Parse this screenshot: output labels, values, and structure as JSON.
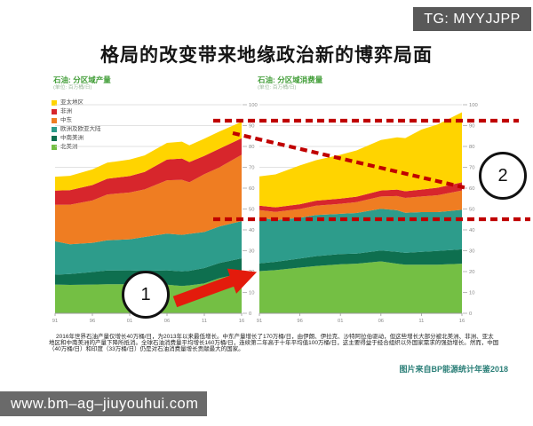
{
  "tg_badge": "TG: MYYJJPP",
  "title": "格局的改变带来地缘政治新的博弈局面",
  "watermark": "www.bm–ag–jiuyouhui.com",
  "legend": {
    "items": [
      {
        "label": "亚太地区",
        "color": "#FFD400"
      },
      {
        "label": "非洲",
        "color": "#D7262C"
      },
      {
        "label": "中东",
        "color": "#EF7D22"
      },
      {
        "label": "欧洲及欧亚大陆",
        "color": "#2D9C8B"
      },
      {
        "label": "中南美洲",
        "color": "#0E6F4F"
      },
      {
        "label": "北美洲",
        "color": "#74BF44"
      }
    ]
  },
  "chart_data": [
    {
      "type": "area",
      "title": "石油: 分区域产量",
      "unit_label": "(单位: 百万桶/日)",
      "x": [
        1991,
        1993,
        1996,
        1998,
        2001,
        2003,
        2006,
        2008,
        2009,
        2011,
        2013,
        2016
      ],
      "x_tick_labels": [
        "91",
        "96",
        "01",
        "06",
        "11",
        "16"
      ],
      "ylim": [
        0,
        100
      ],
      "y_ticks": [
        0,
        10,
        20,
        30,
        40,
        50,
        60,
        70,
        80,
        90,
        100
      ],
      "stack_order": "bottom-to-top",
      "legend_position": "left",
      "grid": true,
      "series": [
        {
          "name": "北美洲",
          "color": "#74BF44",
          "values": [
            13.8,
            13.6,
            13.8,
            13.9,
            13.9,
            14.0,
            13.7,
            13.1,
            13.4,
            14.3,
            16.8,
            19.3
          ]
        },
        {
          "name": "中南美洲",
          "color": "#0E6F4F",
          "values": [
            4.7,
            5.2,
            6.0,
            6.6,
            6.7,
            6.4,
            6.9,
            7.0,
            7.0,
            7.4,
            7.3,
            7.1
          ]
        },
        {
          "name": "欧洲及欧亚大陆",
          "color": "#2D9C8B",
          "values": [
            16.0,
            14.3,
            14.0,
            14.5,
            14.9,
            16.2,
            17.6,
            17.5,
            17.7,
            17.3,
            17.5,
            17.8
          ]
        },
        {
          "name": "中东",
          "color": "#EF7D22",
          "values": [
            17.5,
            19.0,
            20.3,
            22.0,
            22.4,
            22.8,
            25.6,
            26.4,
            24.7,
            27.7,
            28.3,
            31.8
          ]
        },
        {
          "name": "非洲",
          "color": "#D7262C",
          "values": [
            6.8,
            6.9,
            7.4,
            7.5,
            7.9,
            8.4,
            9.9,
            10.2,
            9.7,
            8.8,
            9.0,
            7.9
          ]
        },
        {
          "name": "亚太地区",
          "color": "#FFD400",
          "values": [
            6.7,
            6.9,
            7.5,
            7.7,
            7.9,
            7.9,
            8.0,
            8.1,
            8.0,
            8.2,
            8.2,
            7.9
          ]
        }
      ]
    },
    {
      "type": "area",
      "title": "石油: 分区域消费量",
      "unit_label": "(单位: 百万桶/日)",
      "x": [
        1991,
        1993,
        1996,
        1998,
        2001,
        2003,
        2006,
        2008,
        2009,
        2011,
        2013,
        2016
      ],
      "x_tick_labels": [
        "91",
        "96",
        "01",
        "06",
        "11",
        "16"
      ],
      "ylim": [
        0,
        100
      ],
      "y_ticks": [
        0,
        10,
        20,
        30,
        40,
        50,
        60,
        70,
        80,
        90,
        100
      ],
      "stack_order": "bottom-to-top",
      "grid": true,
      "series": [
        {
          "name": "北美洲",
          "color": "#74BF44",
          "values": [
            20.2,
            20.7,
            21.9,
            22.7,
            23.5,
            23.8,
            24.9,
            23.8,
            23.3,
            23.3,
            23.3,
            23.8
          ]
        },
        {
          "name": "中南美洲",
          "color": "#0E6F4F",
          "values": [
            3.7,
            4.0,
            4.4,
            4.7,
            4.9,
            4.8,
            5.2,
            5.7,
            5.7,
            6.2,
            6.6,
            6.9
          ]
        },
        {
          "name": "欧洲及欧亚大陆",
          "color": "#2D9C8B",
          "values": [
            22.0,
            20.0,
            19.5,
            19.7,
            19.3,
            19.5,
            20.0,
            19.9,
            19.2,
            19.0,
            18.6,
            18.9
          ]
        },
        {
          "name": "中东",
          "color": "#EF7D22",
          "values": [
            3.6,
            3.9,
            4.2,
            4.5,
            4.8,
            5.2,
            5.9,
            6.8,
            7.1,
            7.5,
            8.1,
            9.3
          ]
        },
        {
          "name": "非洲",
          "color": "#D7262C",
          "values": [
            2.1,
            2.2,
            2.3,
            2.4,
            2.5,
            2.6,
            2.9,
            3.1,
            3.2,
            3.3,
            3.6,
            3.9
          ]
        },
        {
          "name": "亚太地区",
          "color": "#FFD400",
          "values": [
            14.0,
            15.8,
            18.6,
            19.4,
            21.0,
            22.2,
            24.2,
            25.1,
            25.5,
            28.8,
            30.3,
            33.6
          ]
        }
      ]
    }
  ],
  "annotations": {
    "circle1_label": "1",
    "circle2_label": "2",
    "dash_color": "#C00000",
    "arrow_color": "#E31B0C"
  },
  "footer": {
    "paragraph": "2016年世界石油产量仅增长40万桶/日，为2013年以来最低增长。中东产量增长了170万桶/日，由伊朗、伊拉克、沙特阿拉伯驱动，但这些增长大部分被北美洲、非洲、亚太地区和中南美洲的产量下降所抵消。全球石油消费量平均增长160万桶/日，连续第二年高于十年平均值100万桶/日，这主要得益于经合组织以外国家需求的强劲增长。然而，中国（40万桶/日）和印度（33万桶/日）仍是对石油消费量增长贡献最大的国家。",
    "source": "图片来自BP能源统计年鉴2018"
  }
}
